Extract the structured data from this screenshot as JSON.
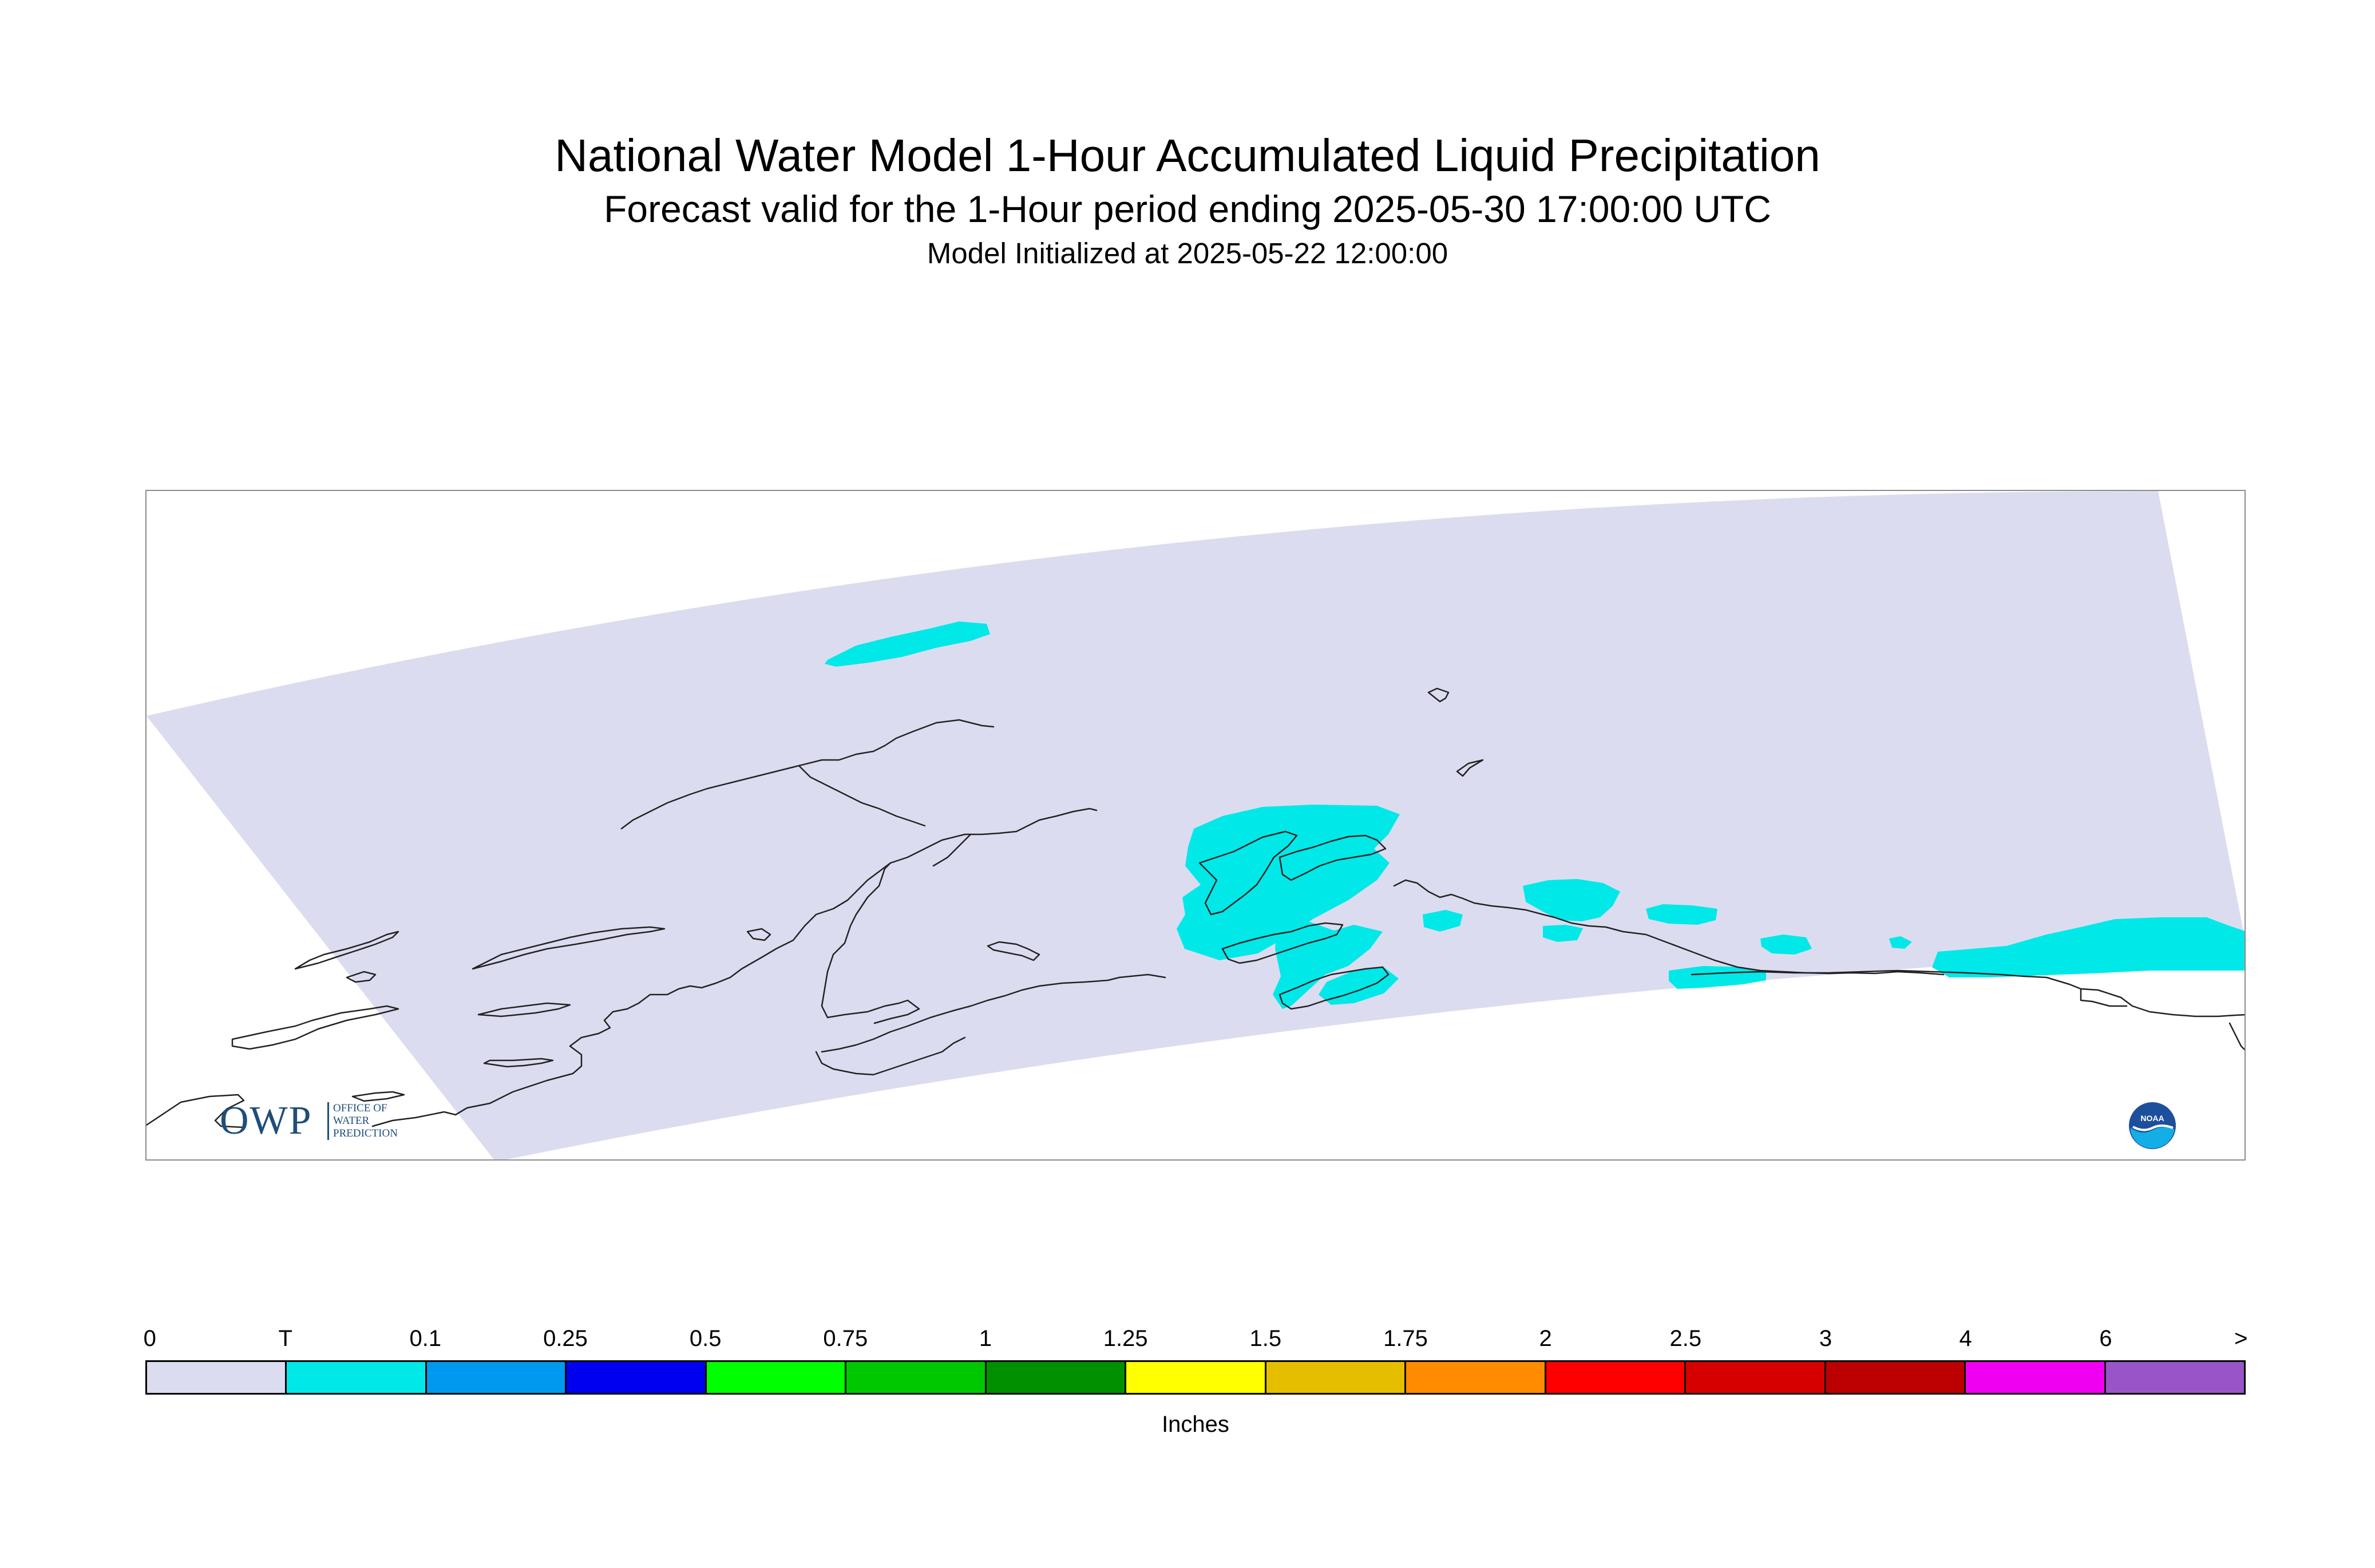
{
  "title": "National Water Model 1-Hour Accumulated Liquid Precipitation",
  "subtitle": "Forecast valid for the 1-Hour period ending 2025-05-30 17:00:00 UTC",
  "init_line": "Model Initialized at 2025-05-22 12:00:00",
  "map": {
    "region": "Alaska",
    "domain_fill_color": "#dcdcf0",
    "coastline_color": "#222222",
    "precip_areas_category": "T"
  },
  "logos": {
    "owp": {
      "letters": "OWP",
      "text_lines": [
        "OFFICE OF",
        "WATER",
        "PREDICTION"
      ]
    },
    "noaa": {
      "text": "NOAA"
    }
  },
  "legend": {
    "tick_labels": [
      "0",
      "T",
      "0.1",
      "0.25",
      "0.5",
      "0.75",
      "1",
      "1.25",
      "1.5",
      "1.75",
      "2",
      "2.5",
      "3",
      "4",
      "6",
      ">"
    ],
    "colors": [
      "#dcdcf0",
      "#00e8e8",
      "#0099f0",
      "#0000f0",
      "#00ff00",
      "#00c800",
      "#009000",
      "#ffff00",
      "#e6be00",
      "#ff8c00",
      "#ff0000",
      "#d70000",
      "#bc0000",
      "#f000f0",
      "#9955c8"
    ],
    "units": "Inches"
  }
}
